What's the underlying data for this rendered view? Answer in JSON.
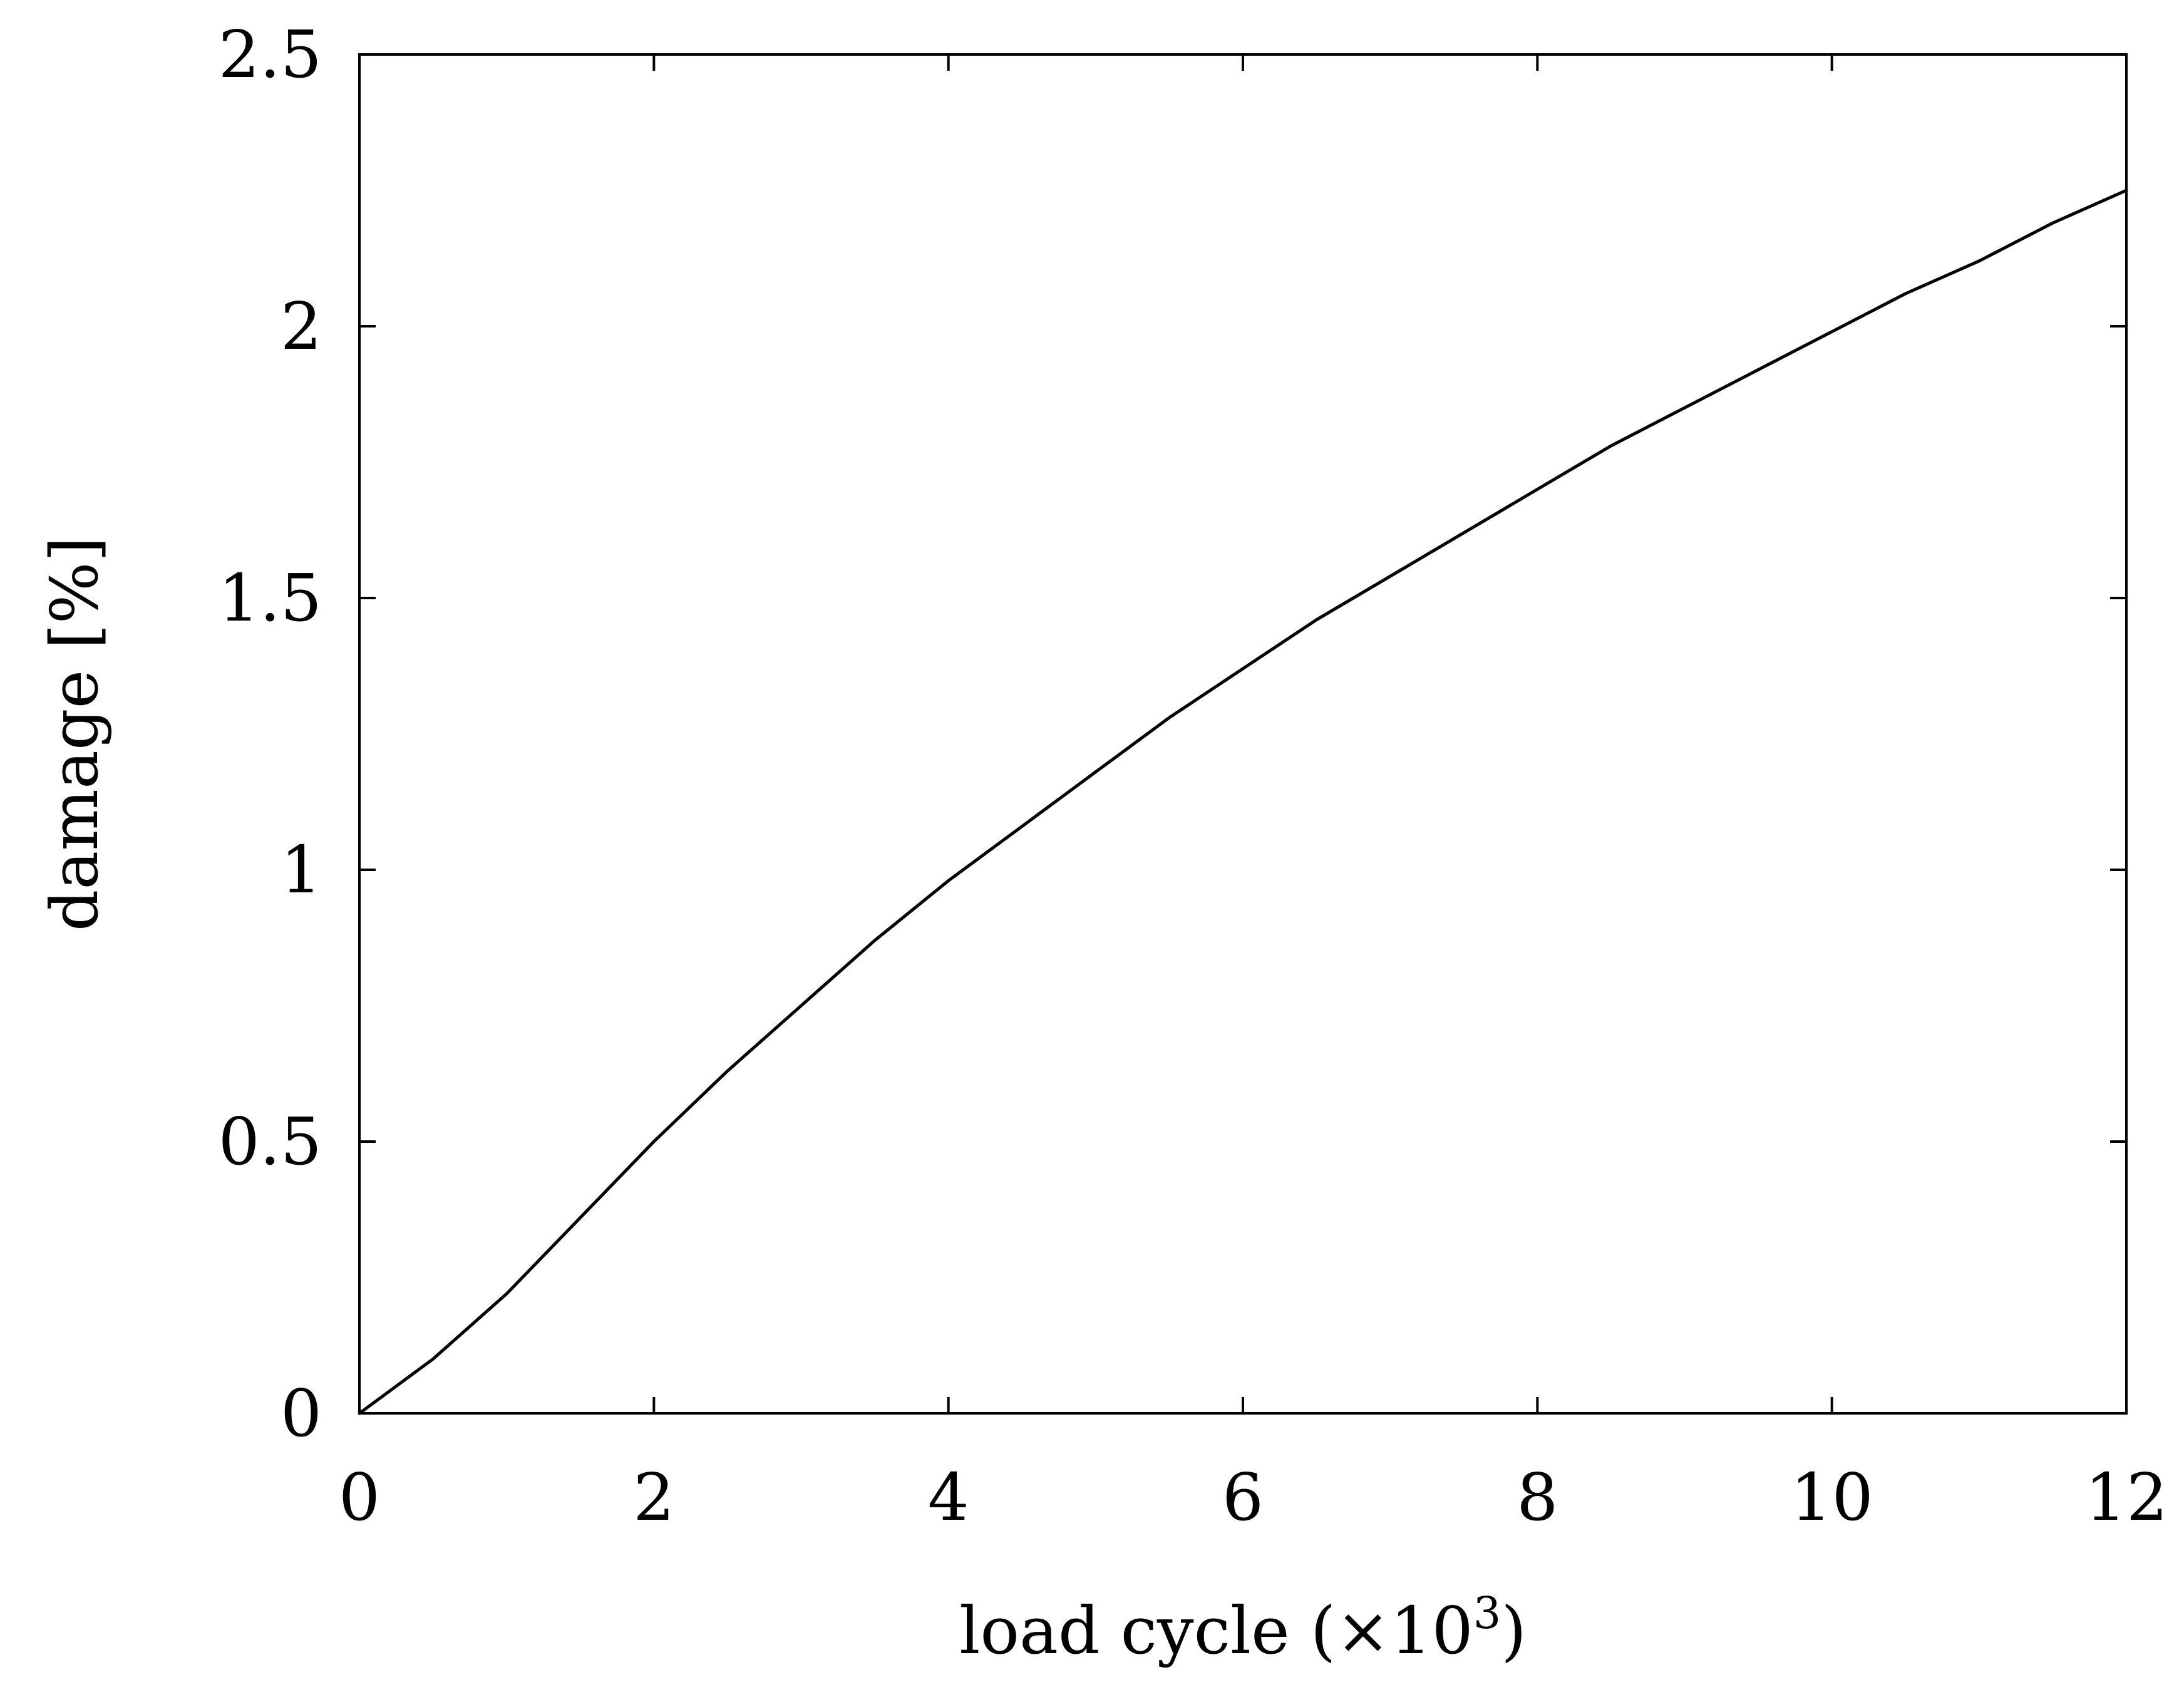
{
  "chart_data": {
    "type": "line",
    "title": "",
    "xlabel": "load cycle (×10",
    "xlabel_superscript": "3",
    "xlabel_suffix": ")",
    "ylabel": "damage [%]",
    "xlim": [
      0,
      12
    ],
    "ylim": [
      0,
      2.5
    ],
    "x_ticks": [
      0,
      2,
      4,
      6,
      8,
      10,
      12
    ],
    "x_tick_labels": [
      "0",
      "2",
      "4",
      "6",
      "8",
      "10",
      "12"
    ],
    "y_ticks": [
      0,
      0.5,
      1,
      1.5,
      2,
      2.5
    ],
    "y_tick_labels": [
      "0",
      "0.5",
      "1",
      "1.5",
      "2",
      "2.5"
    ],
    "grid": false,
    "legend": "none",
    "series": [
      {
        "color": "#000000",
        "x": [
          0,
          0.25,
          0.5,
          0.75,
          1,
          1.25,
          1.5,
          1.75,
          2,
          2.5,
          3,
          3.5,
          4,
          4.5,
          5,
          5.5,
          6,
          6.5,
          7,
          7.5,
          8,
          8.5,
          9,
          9.5,
          10,
          10.5,
          11,
          11.5,
          12
        ],
        "y": [
          0,
          0.05,
          0.1,
          0.16,
          0.22,
          0.29,
          0.36,
          0.43,
          0.5,
          0.63,
          0.75,
          0.87,
          0.98,
          1.08,
          1.18,
          1.28,
          1.37,
          1.46,
          1.54,
          1.62,
          1.7,
          1.78,
          1.85,
          1.92,
          1.99,
          2.06,
          2.12,
          2.19,
          2.25
        ]
      }
    ]
  }
}
